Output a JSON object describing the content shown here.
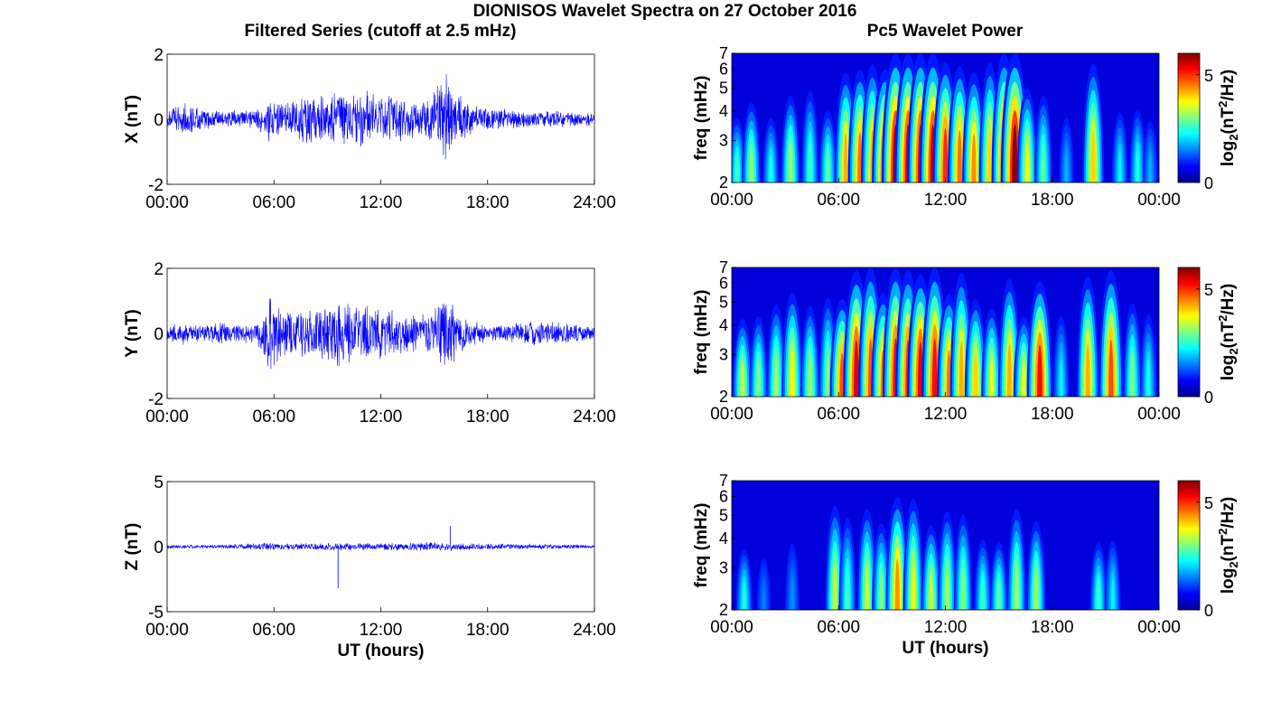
{
  "figure": {
    "title": "DIONISOS Wavelet Spectra on 27 October 2016",
    "left_title": "Filtered Series (cutoff at 2.5 mHz)",
    "right_title": "Pc5 Wavelet Power"
  },
  "chart_data": [
    {
      "type": "line",
      "panel": "X",
      "title": "Filtered Series (cutoff at 2.5 mHz)",
      "ylabel": "X (nT)",
      "xlabel": "",
      "xlim": [
        0,
        24
      ],
      "ylim": [
        -2,
        2
      ],
      "x_ticks": [
        "00:00",
        "06:00",
        "12:00",
        "18:00",
        "24:00"
      ],
      "y_ticks": [
        "-2",
        "0",
        "2"
      ],
      "color": "#0000ff",
      "envelope_hours": [
        0,
        0.8,
        2,
        3,
        4,
        5,
        5.8,
        6.5,
        7.5,
        8.5,
        9.5,
        10.5,
        11.5,
        12.5,
        13.5,
        14.5,
        15.8,
        16.3,
        17.2,
        18.5,
        20,
        21.5,
        23,
        24
      ],
      "envelope_amplitude_nT": [
        0.25,
        0.6,
        0.35,
        0.3,
        0.3,
        0.35,
        0.8,
        0.5,
        0.8,
        0.9,
        1.0,
        1.0,
        0.9,
        0.8,
        0.7,
        0.6,
        1.6,
        0.9,
        0.5,
        0.35,
        0.3,
        0.3,
        0.25,
        0.2
      ]
    },
    {
      "type": "line",
      "panel": "Y",
      "ylabel": "Y (nT)",
      "xlabel": "",
      "xlim": [
        0,
        24
      ],
      "ylim": [
        -2,
        2
      ],
      "x_ticks": [
        "00:00",
        "06:00",
        "12:00",
        "18:00",
        "24:00"
      ],
      "y_ticks": [
        "-2",
        "0",
        "2"
      ],
      "color": "#0000ff",
      "envelope_hours": [
        0,
        1,
        2,
        3,
        4,
        5,
        5.8,
        6.5,
        7.5,
        8.5,
        9.5,
        10.5,
        11.5,
        12.5,
        13.5,
        14.5,
        15.8,
        16.3,
        17.2,
        18.5,
        20,
        21.5,
        23,
        24
      ],
      "envelope_amplitude_nT": [
        0.3,
        0.35,
        0.3,
        0.35,
        0.35,
        0.3,
        1.3,
        0.7,
        0.8,
        0.9,
        1.1,
        1.0,
        0.9,
        0.8,
        0.7,
        0.6,
        1.3,
        0.7,
        0.4,
        0.25,
        0.4,
        0.4,
        0.3,
        0.25
      ]
    },
    {
      "type": "line",
      "panel": "Z",
      "ylabel": "Z (nT)",
      "xlabel": "UT (hours)",
      "xlim": [
        0,
        24
      ],
      "ylim": [
        -5,
        5
      ],
      "x_ticks": [
        "00:00",
        "06:00",
        "12:00",
        "18:00",
        "24:00"
      ],
      "y_ticks": [
        "-5",
        "0",
        "5"
      ],
      "color": "#0000ff",
      "envelope_hours": [
        0,
        3,
        5.8,
        6.5,
        9,
        12,
        15.8,
        18,
        21,
        24
      ],
      "envelope_amplitude_nT": [
        0.15,
        0.15,
        0.35,
        0.25,
        0.3,
        0.3,
        0.35,
        0.25,
        0.2,
        0.15
      ],
      "spikes": [
        {
          "hour": 9.6,
          "value": -3.2
        },
        {
          "hour": 15.9,
          "value": 1.6
        }
      ]
    },
    {
      "type": "heatmap",
      "panel": "X",
      "title": "Pc5 Wavelet Power",
      "ylabel": "freq (mHz)",
      "xlabel": "",
      "xlim": [
        0,
        24
      ],
      "ylim": [
        2,
        7
      ],
      "yscale": "log",
      "x_ticks": [
        "00:00",
        "06:00",
        "12:00",
        "18:00",
        "00:00"
      ],
      "y_ticks": [
        "2",
        "3",
        "4",
        "5",
        "6",
        "7"
      ],
      "colorbar_label": "log2(nT^2/Hz)",
      "colorbar_ticks": [
        "0",
        "5"
      ],
      "clim": [
        0,
        6
      ],
      "colormap": "jet",
      "bursts": [
        [
          0.3,
          2.6
        ],
        [
          1.1,
          3.1
        ],
        [
          2.2,
          2.4
        ],
        [
          3.3,
          3.2
        ],
        [
          4.4,
          2.6
        ],
        [
          5.4,
          2.8
        ],
        [
          6.4,
          4.2
        ],
        [
          7.2,
          4.6
        ],
        [
          7.9,
          4.2
        ],
        [
          8.6,
          5.2
        ],
        [
          9.2,
          5.8
        ],
        [
          9.9,
          5.5
        ],
        [
          10.6,
          5.4
        ],
        [
          11.3,
          5.6
        ],
        [
          12.0,
          5.0
        ],
        [
          12.8,
          4.6
        ],
        [
          13.6,
          4.4
        ],
        [
          14.5,
          4.0
        ],
        [
          15.3,
          5.0
        ],
        [
          15.9,
          5.9
        ],
        [
          16.6,
          3.6
        ],
        [
          17.5,
          2.8
        ],
        [
          18.8,
          1.8
        ],
        [
          20.3,
          4.0
        ],
        [
          21.8,
          2.2
        ],
        [
          22.8,
          2.4
        ],
        [
          23.5,
          1.8
        ]
      ]
    },
    {
      "type": "heatmap",
      "panel": "Y",
      "ylabel": "freq (mHz)",
      "xlabel": "",
      "xlim": [
        0,
        24
      ],
      "ylim": [
        2,
        7
      ],
      "yscale": "log",
      "x_ticks": [
        "00:00",
        "06:00",
        "12:00",
        "18:00",
        "00:00"
      ],
      "y_ticks": [
        "2",
        "3",
        "4",
        "5",
        "6",
        "7"
      ],
      "colorbar_label": "log2(nT^2/Hz)",
      "colorbar_ticks": [
        "0",
        "5"
      ],
      "clim": [
        0,
        6
      ],
      "colormap": "jet",
      "bursts": [
        [
          0.6,
          3.4
        ],
        [
          1.5,
          3.0
        ],
        [
          2.5,
          3.2
        ],
        [
          3.4,
          3.8
        ],
        [
          4.4,
          3.2
        ],
        [
          5.4,
          3.0
        ],
        [
          6.2,
          4.8
        ],
        [
          7.0,
          5.4
        ],
        [
          7.8,
          4.8
        ],
        [
          8.5,
          4.6
        ],
        [
          9.2,
          5.2
        ],
        [
          9.9,
          5.0
        ],
        [
          10.6,
          5.4
        ],
        [
          11.4,
          5.2
        ],
        [
          12.2,
          4.6
        ],
        [
          12.9,
          4.2
        ],
        [
          13.7,
          4.0
        ],
        [
          14.6,
          3.6
        ],
        [
          15.6,
          4.2
        ],
        [
          16.4,
          3.6
        ],
        [
          17.3,
          5.2
        ],
        [
          18.5,
          2.2
        ],
        [
          20.0,
          4.2
        ],
        [
          21.3,
          4.8
        ],
        [
          22.5,
          3.0
        ],
        [
          23.4,
          2.4
        ]
      ]
    },
    {
      "type": "heatmap",
      "panel": "Z",
      "ylabel": "freq (mHz)",
      "xlabel": "UT (hours)",
      "xlim": [
        0,
        24
      ],
      "ylim": [
        2,
        7
      ],
      "yscale": "log",
      "x_ticks": [
        "00:00",
        "06:00",
        "12:00",
        "18:00",
        "00:00"
      ],
      "y_ticks": [
        "2",
        "3",
        "4",
        "5",
        "6",
        "7"
      ],
      "colorbar_label": "log2(nT^2/Hz)",
      "colorbar_ticks": [
        "0",
        "5"
      ],
      "clim": [
        0,
        6
      ],
      "colormap": "jet",
      "bursts": [
        [
          0.7,
          2.4
        ],
        [
          1.8,
          1.5
        ],
        [
          3.4,
          1.6
        ],
        [
          5.8,
          3.4
        ],
        [
          6.5,
          2.6
        ],
        [
          7.6,
          3.4
        ],
        [
          8.4,
          3.0
        ],
        [
          9.3,
          4.4
        ],
        [
          10.2,
          3.6
        ],
        [
          11.2,
          3.4
        ],
        [
          12.1,
          3.2
        ],
        [
          13.0,
          3.0
        ],
        [
          14.1,
          2.6
        ],
        [
          15.0,
          2.8
        ],
        [
          16.0,
          3.2
        ],
        [
          17.1,
          3.2
        ],
        [
          20.6,
          2.6
        ],
        [
          21.4,
          2.2
        ]
      ]
    }
  ]
}
